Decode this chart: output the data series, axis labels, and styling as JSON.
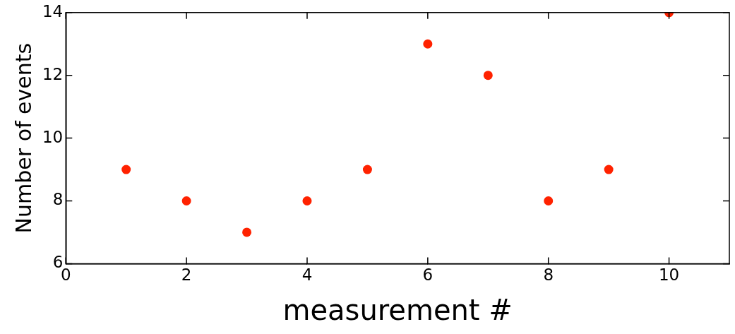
{
  "chart_data": {
    "type": "scatter",
    "xlabel": "measurement #",
    "ylabel": "Number of events",
    "x": [
      1,
      2,
      3,
      4,
      5,
      6,
      7,
      8,
      9,
      10
    ],
    "series": [
      {
        "color": "#ff2200",
        "values": [
          9,
          8,
          7,
          8,
          9,
          13,
          12,
          8,
          9,
          14
        ]
      }
    ],
    "xlim": [
      0,
      11
    ],
    "xticks": [
      0,
      2,
      4,
      6,
      8,
      10
    ],
    "ylim": [
      6,
      14
    ],
    "yticks": [
      6,
      8,
      10,
      12,
      14
    ],
    "grid": false,
    "legend": false,
    "marker": "circle"
  }
}
